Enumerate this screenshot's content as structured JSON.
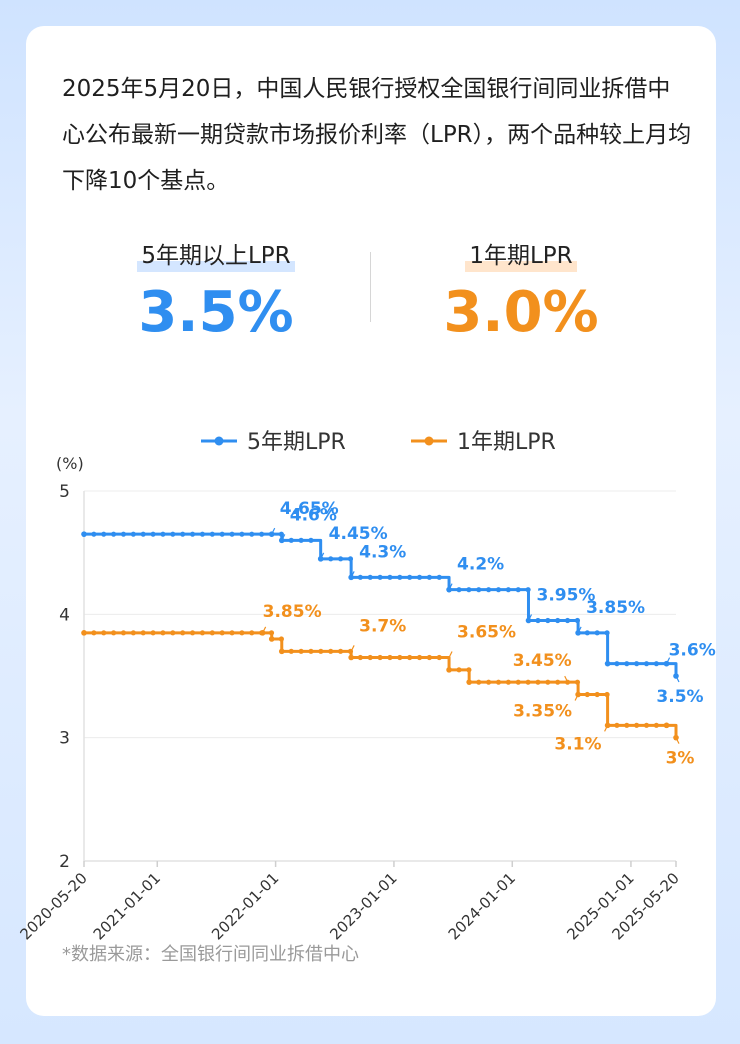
{
  "intro_text": "2025年5月20日，中国人民银行授权全国银行间同业拆借中心公布最新一期贷款市场报价利率（LPR），两个品种较上月均下降10个基点。",
  "kpis": {
    "five_year": {
      "label": "5年期以上LPR",
      "value": "3.5%"
    },
    "one_year": {
      "label": "1年期LPR",
      "value": "3.0%"
    }
  },
  "source": "*数据来源：全国银行间同业拆借中心",
  "colors": {
    "five_year": "#2f8ef0",
    "one_year": "#f2901d"
  },
  "chart_data": {
    "type": "line",
    "ylabel": "(%)",
    "ylim": [
      2,
      5
    ],
    "yticks": [
      "2",
      "3",
      "4",
      "5"
    ],
    "x_range": [
      "2020-05-20",
      "2025-05-20"
    ],
    "xticks": [
      "2020-05-20",
      "2021-01-01",
      "2022-01-01",
      "2023-01-01",
      "2024-01-01",
      "2025-01-01",
      "2025-05-20"
    ],
    "legend": "top",
    "grid": "horizontal",
    "series": [
      {
        "name": "5年期LPR",
        "color": "#2f8ef0",
        "points": [
          {
            "x": "2020-05-20",
            "y": 4.65
          },
          {
            "x": "2021-12-20",
            "y": 4.65
          },
          {
            "x": "2022-01-20",
            "y": 4.6
          },
          {
            "x": "2022-05-20",
            "y": 4.45
          },
          {
            "x": "2022-08-22",
            "y": 4.3
          },
          {
            "x": "2023-06-20",
            "y": 4.2
          },
          {
            "x": "2024-02-20",
            "y": 3.95
          },
          {
            "x": "2024-07-22",
            "y": 3.85
          },
          {
            "x": "2024-10-21",
            "y": 3.6
          },
          {
            "x": "2025-04-21",
            "y": 3.6
          },
          {
            "x": "2025-05-20",
            "y": 3.5
          }
        ],
        "labels": [
          {
            "x": "2021-12-20",
            "y": 4.65,
            "text": "4.65%"
          },
          {
            "x": "2022-01-20",
            "y": 4.6,
            "text": "4.6%"
          },
          {
            "x": "2022-05-20",
            "y": 4.45,
            "text": "4.45%"
          },
          {
            "x": "2022-08-22",
            "y": 4.3,
            "text": "4.3%"
          },
          {
            "x": "2023-06-20",
            "y": 4.2,
            "text": "4.2%"
          },
          {
            "x": "2024-02-20",
            "y": 3.95,
            "text": "3.95%"
          },
          {
            "x": "2024-07-22",
            "y": 3.85,
            "text": "3.85%"
          },
          {
            "x": "2025-04-21",
            "y": 3.6,
            "text": "3.6%"
          },
          {
            "x": "2025-05-20",
            "y": 3.5,
            "text": "3.5%"
          }
        ]
      },
      {
        "name": "1年期LPR",
        "color": "#f2901d",
        "points": [
          {
            "x": "2020-05-20",
            "y": 3.85
          },
          {
            "x": "2021-11-22",
            "y": 3.85
          },
          {
            "x": "2021-12-20",
            "y": 3.8
          },
          {
            "x": "2022-01-20",
            "y": 3.7
          },
          {
            "x": "2022-08-22",
            "y": 3.65
          },
          {
            "x": "2023-06-20",
            "y": 3.55
          },
          {
            "x": "2023-08-21",
            "y": 3.45
          },
          {
            "x": "2024-07-22",
            "y": 3.35
          },
          {
            "x": "2024-10-21",
            "y": 3.1
          },
          {
            "x": "2025-04-21",
            "y": 3.1
          },
          {
            "x": "2025-05-20",
            "y": 3.0
          }
        ],
        "labels": [
          {
            "x": "2021-11-22",
            "y": 3.85,
            "text": "3.85%"
          },
          {
            "x": "2022-08-22",
            "y": 3.7,
            "text": "3.7%"
          },
          {
            "x": "2023-06-20",
            "y": 3.65,
            "text": "3.65%"
          },
          {
            "x": "2024-06-20",
            "y": 3.45,
            "text": "3.45%"
          },
          {
            "x": "2024-07-22",
            "y": 3.35,
            "text": "3.35%"
          },
          {
            "x": "2024-10-21",
            "y": 3.1,
            "text": "3.1%"
          },
          {
            "x": "2025-05-20",
            "y": 3.0,
            "text": "3%"
          }
        ]
      }
    ]
  }
}
